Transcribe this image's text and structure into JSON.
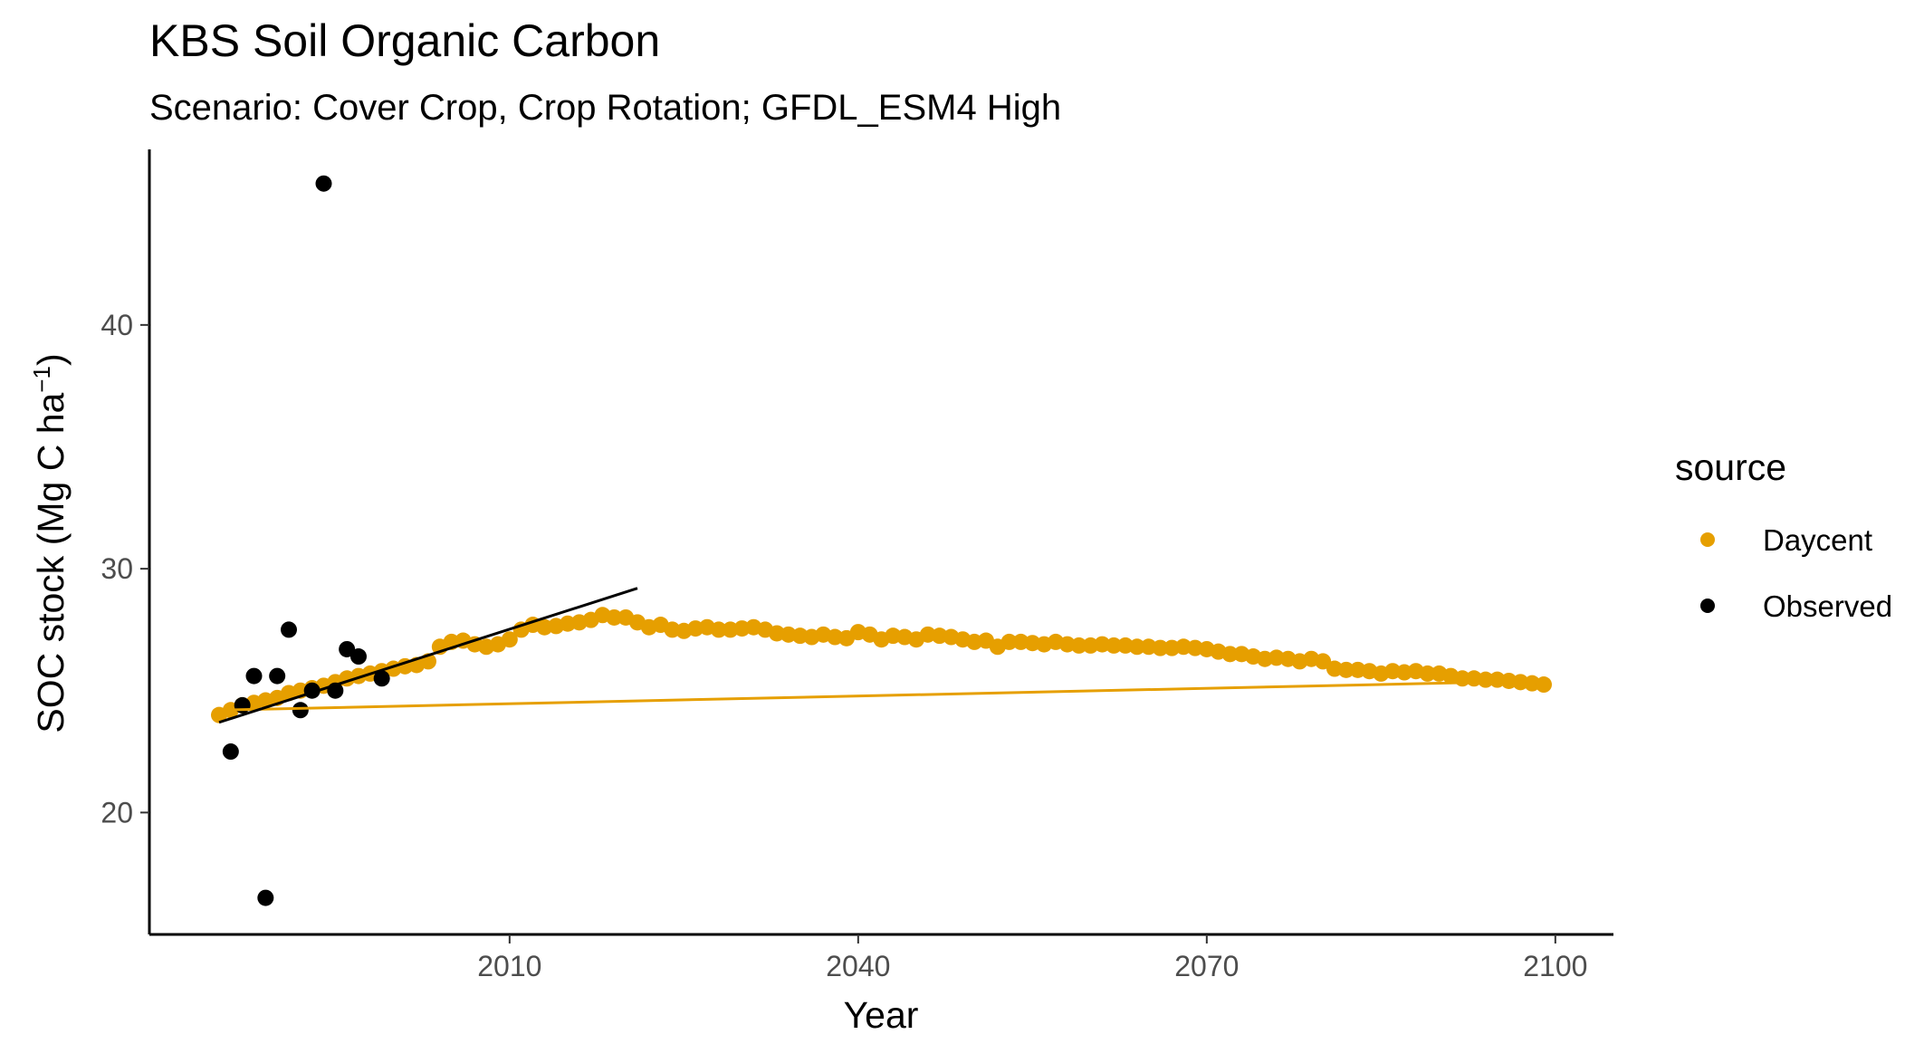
{
  "chart_data": {
    "type": "scatter",
    "title": "KBS Soil Organic Carbon",
    "subtitle": "Scenario: Cover Crop, Crop Rotation; GFDL_ESM4 High",
    "xlabel": "Year",
    "ylabel": "SOC stock (Mg C ha",
    "ylabel_superscript": "−1",
    "ylabel_close": ")",
    "xlim": [
      1979,
      2105
    ],
    "ylim": [
      15,
      47.2
    ],
    "x_ticks": [
      2010,
      2040,
      2070,
      2100
    ],
    "y_ticks": [
      20,
      30,
      40
    ],
    "grid": false,
    "legend": {
      "title": "source",
      "position": "right",
      "entries": [
        {
          "label": "Daycent",
          "color": "#E69F00"
        },
        {
          "label": "Observed",
          "color": "#000000"
        }
      ]
    },
    "series": [
      {
        "name": "Daycent",
        "color": "#E69F00",
        "x": [
          1985,
          1986,
          1987,
          1988,
          1989,
          1990,
          1991,
          1992,
          1993,
          1994,
          1995,
          1996,
          1997,
          1998,
          1999,
          2000,
          2001,
          2002,
          2003,
          2004,
          2005,
          2006,
          2007,
          2008,
          2009,
          2010,
          2011,
          2012,
          2013,
          2014,
          2015,
          2016,
          2017,
          2018,
          2019,
          2020,
          2021,
          2022,
          2023,
          2024,
          2025,
          2026,
          2027,
          2028,
          2029,
          2030,
          2031,
          2032,
          2033,
          2034,
          2035,
          2036,
          2037,
          2038,
          2039,
          2040,
          2041,
          2042,
          2043,
          2044,
          2045,
          2046,
          2047,
          2048,
          2049,
          2050,
          2051,
          2052,
          2053,
          2054,
          2055,
          2056,
          2057,
          2058,
          2059,
          2060,
          2061,
          2062,
          2063,
          2064,
          2065,
          2066,
          2067,
          2068,
          2069,
          2070,
          2071,
          2072,
          2073,
          2074,
          2075,
          2076,
          2077,
          2078,
          2079,
          2080,
          2081,
          2082,
          2083,
          2084,
          2085,
          2086,
          2087,
          2088,
          2089,
          2090,
          2091,
          2092,
          2093,
          2094,
          2095,
          2096,
          2097,
          2098,
          2099
        ],
        "y": [
          24.0,
          24.2,
          24.4,
          24.5,
          24.6,
          24.7,
          24.9,
          25.0,
          25.1,
          25.2,
          25.35,
          25.5,
          25.6,
          25.7,
          25.8,
          25.9,
          26.0,
          26.05,
          26.2,
          26.8,
          27.0,
          27.05,
          26.9,
          26.8,
          26.9,
          27.1,
          27.5,
          27.7,
          27.6,
          27.65,
          27.75,
          27.8,
          27.9,
          28.1,
          28.0,
          28.0,
          27.8,
          27.6,
          27.7,
          27.5,
          27.45,
          27.55,
          27.6,
          27.5,
          27.5,
          27.55,
          27.6,
          27.5,
          27.35,
          27.3,
          27.25,
          27.2,
          27.3,
          27.2,
          27.15,
          27.4,
          27.3,
          27.1,
          27.25,
          27.2,
          27.1,
          27.3,
          27.25,
          27.2,
          27.1,
          27.0,
          27.05,
          26.8,
          27.0,
          27.0,
          26.95,
          26.9,
          27.0,
          26.9,
          26.85,
          26.85,
          26.9,
          26.85,
          26.85,
          26.8,
          26.8,
          26.75,
          26.75,
          26.8,
          26.75,
          26.7,
          26.6,
          26.5,
          26.5,
          26.4,
          26.3,
          26.35,
          26.3,
          26.2,
          26.3,
          26.2,
          25.9,
          25.85,
          25.85,
          25.8,
          25.7,
          25.8,
          25.75,
          25.8,
          25.7,
          25.7,
          25.6,
          25.5,
          25.5,
          25.45,
          25.45,
          25.4,
          25.35,
          25.3,
          25.25
        ]
      },
      {
        "name": "Observed",
        "color": "#000000",
        "x": [
          1986,
          1987,
          1988,
          1989,
          1990,
          1991,
          1992,
          1993,
          1994,
          1995,
          1996,
          1997,
          1999
        ],
        "y": [
          22.5,
          24.4,
          25.6,
          16.5,
          25.6,
          27.5,
          24.2,
          25.0,
          45.8,
          25.0,
          26.7,
          26.4,
          25.5
        ]
      }
    ],
    "fit_lines": [
      {
        "name": "Daycent",
        "color": "#E69F00",
        "x": [
          1985,
          2099
        ],
        "y": [
          24.2,
          25.4
        ]
      },
      {
        "name": "Observed",
        "color": "#000000",
        "x": [
          1985,
          2021
        ],
        "y": [
          23.7,
          29.2
        ]
      }
    ]
  }
}
